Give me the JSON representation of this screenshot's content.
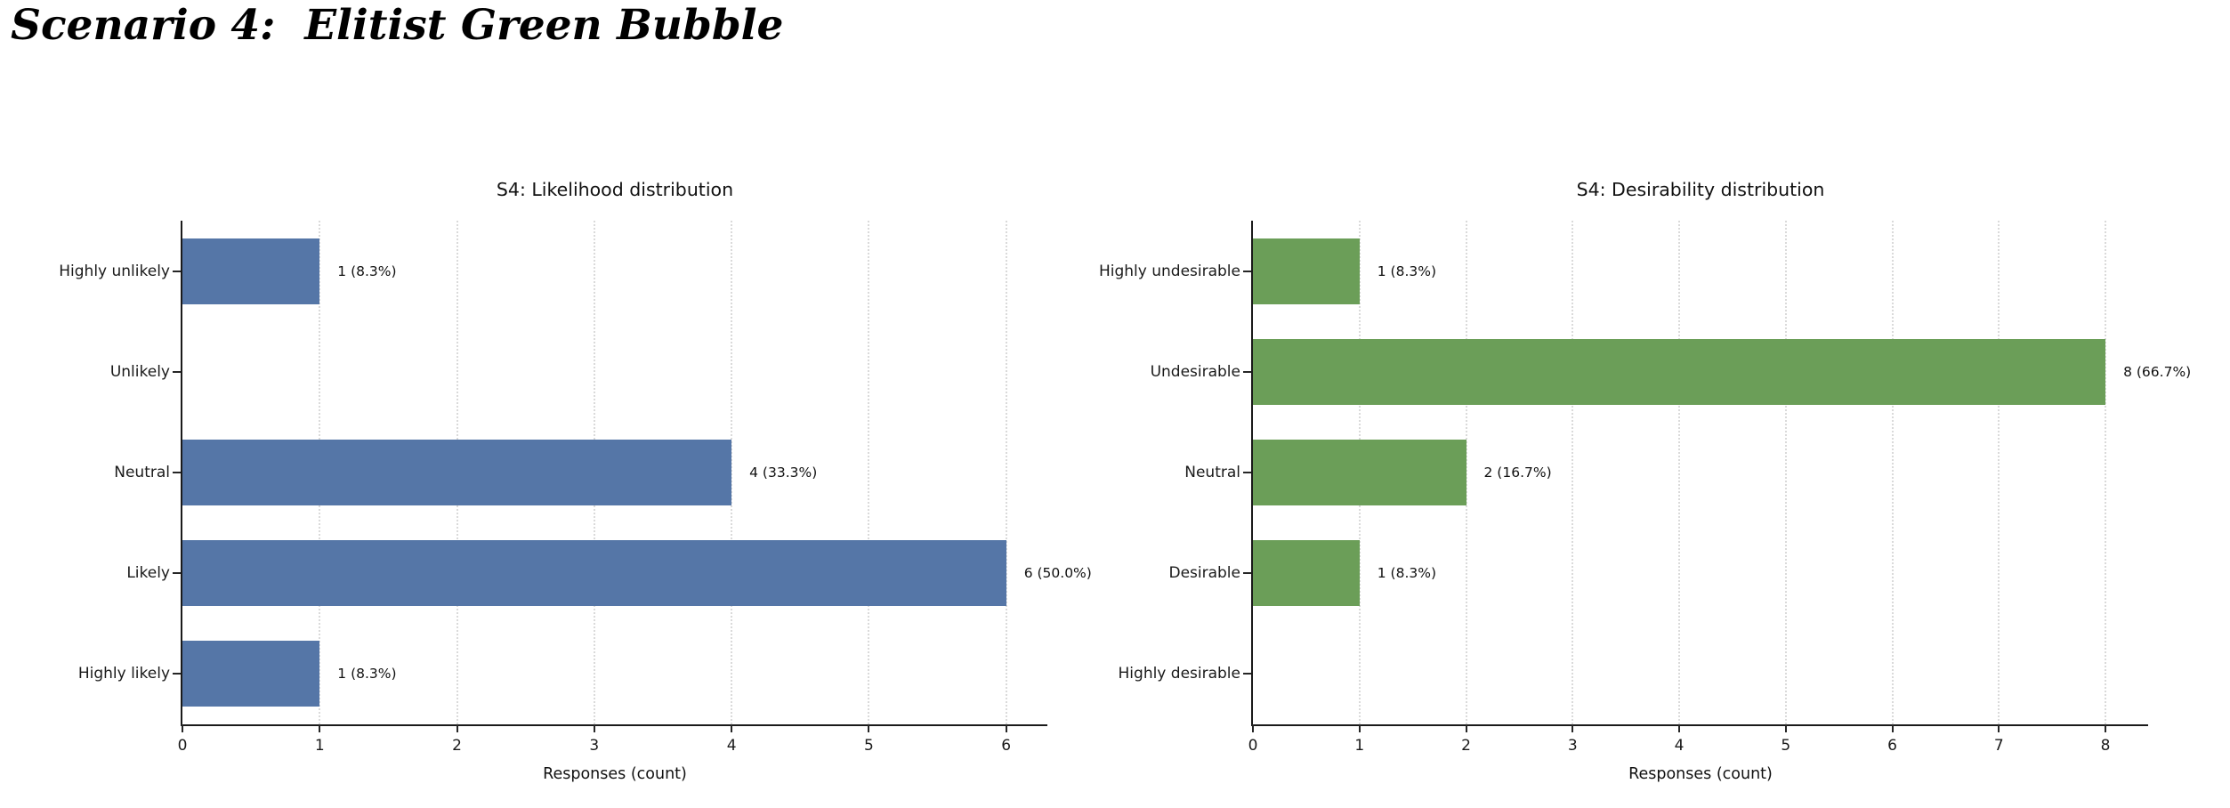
{
  "page": {
    "title": "Scenario 4:  Elitist Green Bubble"
  },
  "chart_data": [
    {
      "type": "bar",
      "orientation": "horizontal",
      "title": "S4: Likelihood distribution",
      "xlabel": "Responses (count)",
      "categories": [
        "Highly unlikely",
        "Unlikely",
        "Neutral",
        "Likely",
        "Highly likely"
      ],
      "values": [
        1,
        0,
        4,
        6,
        1
      ],
      "value_labels": [
        "1 (8.3%)",
        "",
        "4 (33.3%)",
        "6 (50.0%)",
        "1 (8.3%)"
      ],
      "xticks": [
        0,
        1,
        2,
        3,
        4,
        5,
        6
      ],
      "xlim": [
        0,
        6.3
      ],
      "bar_color": "#5576a7",
      "grid": "dotted-vertical",
      "legend": "none"
    },
    {
      "type": "bar",
      "orientation": "horizontal",
      "title": "S4: Desirability distribution",
      "xlabel": "Responses (count)",
      "categories": [
        "Highly undesirable",
        "Undesirable",
        "Neutral",
        "Desirable",
        "Highly desirable"
      ],
      "values": [
        1,
        8,
        2,
        1,
        0
      ],
      "value_labels": [
        "1 (8.3%)",
        "8 (66.7%)",
        "2 (16.7%)",
        "1 (8.3%)",
        ""
      ],
      "xticks": [
        0,
        1,
        2,
        3,
        4,
        5,
        6,
        7,
        8
      ],
      "xlim": [
        0,
        8.4
      ],
      "bar_color": "#6b9e58",
      "grid": "dotted-vertical",
      "legend": "none"
    }
  ]
}
